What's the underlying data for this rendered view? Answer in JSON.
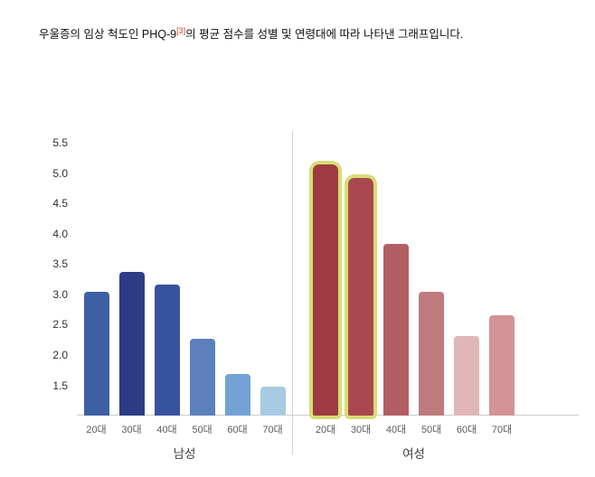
{
  "caption": {
    "prefix": "우울증의 임상 척도인 PHQ-9",
    "superscript": "[3]",
    "suffix": "의 평균 점수를 성별 및 연령대에 따라 나타낸 그래프입니다."
  },
  "chart_data": {
    "type": "bar",
    "title": "",
    "xlabel": "",
    "ylabel": "",
    "categories": [
      "20대",
      "30대",
      "40대",
      "50대",
      "60대",
      "70대"
    ],
    "groups": [
      {
        "name": "남성",
        "values": [
          3.05,
          3.38,
          3.17,
          2.27,
          1.68,
          1.48
        ],
        "colors": [
          "#3d5fa4",
          "#2c3c85",
          "#37539f",
          "#5c80bb",
          "#72a3d4",
          "#a6cbe2"
        ],
        "highlight": [
          false,
          false,
          false,
          false,
          false,
          false
        ]
      },
      {
        "name": "여성",
        "values": [
          5.15,
          4.92,
          3.83,
          3.05,
          2.32,
          2.65
        ],
        "colors": [
          "#9e3b41",
          "#a8484d",
          "#b25f63",
          "#bf7a7d",
          "#e0b6b7",
          "#d29495"
        ],
        "highlight": [
          true,
          true,
          false,
          false,
          false,
          false
        ]
      }
    ],
    "yticks": [
      1.5,
      2.0,
      2.5,
      3.0,
      3.5,
      4.0,
      4.5,
      5.0,
      5.5
    ],
    "ylim": [
      1.0,
      5.7
    ],
    "grid": false,
    "legend": false,
    "highlight_color": "#d8dc73"
  }
}
